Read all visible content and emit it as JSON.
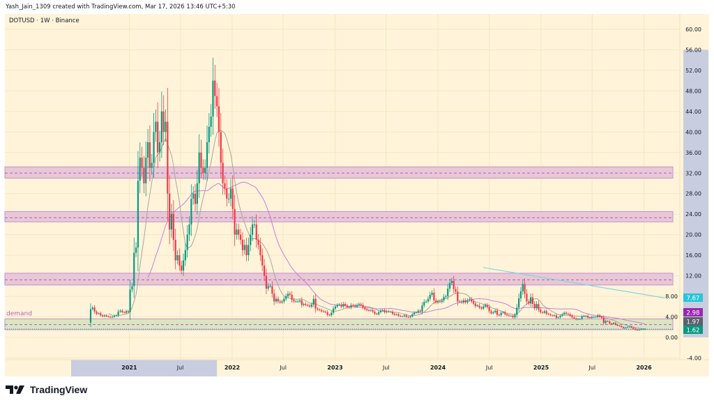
{
  "header": {
    "credit": "Yash_Jain_1309 created with TradingView.com, Mar 17, 2026 13:46 UTC+5:30",
    "symbol": "DOTUSD · 1W · Binance"
  },
  "branding": {
    "name": "TradingView"
  },
  "colors": {
    "background": "#fff4d9",
    "up": "#089981",
    "down": "#f23645",
    "zone_fill": "#e8c8d4",
    "zone_border": "#c58fcf",
    "demand_fill": "#dbe6c0",
    "dashed_line": "#b05ccf",
    "trendline": "#7fd6e0",
    "ma_fast": "#a8a59e",
    "ma_slow": "#cf7ad6",
    "axis_highlight": "#c9cde0"
  },
  "chart_data": {
    "type": "candlestick",
    "title": "DOTUSD · 1W · Binance",
    "interval": "weekly",
    "first_week": "2020-08-17",
    "ylim": [
      -6,
      62
    ],
    "grid": true,
    "y_ticks": [
      "60.00",
      "56.00",
      "52.00",
      "48.00",
      "44.00",
      "40.00",
      "36.00",
      "32.00",
      "28.00",
      "24.00",
      "20.00",
      "16.00",
      "12.00",
      "8.00",
      "4.00",
      "0.00",
      "-4.00"
    ],
    "y_tick_values": [
      60,
      56,
      52,
      48,
      44,
      40,
      36,
      32,
      28,
      24,
      20,
      16,
      12,
      8,
      4,
      0,
      -4
    ],
    "x_ticks": [
      {
        "label": "2021",
        "date": "2021-01-01"
      },
      {
        "label": "Jul",
        "date": "2021-07-01"
      },
      {
        "label": "2022",
        "date": "2022-01-01"
      },
      {
        "label": "Jul",
        "date": "2022-07-01"
      },
      {
        "label": "2023",
        "date": "2023-01-01"
      },
      {
        "label": "Jul",
        "date": "2023-07-01"
      },
      {
        "label": "2024",
        "date": "2024-01-01"
      },
      {
        "label": "Jul",
        "date": "2024-07-01"
      },
      {
        "label": "2025",
        "date": "2025-01-01"
      },
      {
        "label": "Jul",
        "date": "2025-07-01"
      },
      {
        "label": "2026",
        "date": "2026-01-01"
      }
    ],
    "first_open": 2.9,
    "closes": [
      5.5,
      5.8,
      5.0,
      4.6,
      4.7,
      4.3,
      4.1,
      4.3,
      4.1,
      4.0,
      3.9,
      4.0,
      4.2,
      4.3,
      5.0,
      5.2,
      4.9,
      4.8,
      5.1,
      4.9,
      9.3,
      10.0,
      16.5,
      17.5,
      30.5,
      35,
      33,
      30,
      35,
      38,
      33,
      34,
      40,
      42,
      36,
      38,
      44,
      40,
      42,
      28,
      21,
      24,
      19,
      15,
      16,
      14,
      13,
      15,
      17,
      20,
      22,
      27,
      28,
      26,
      30,
      36,
      33,
      32,
      33,
      38,
      41,
      43,
      50,
      47,
      45,
      40,
      34,
      30,
      29,
      27,
      27,
      29,
      25,
      20,
      21,
      20,
      19,
      17,
      18,
      16,
      18,
      20,
      22,
      22,
      19,
      18,
      16,
      14,
      12,
      9.5,
      10,
      10,
      8.5,
      7,
      7.5,
      7,
      6.8,
      7,
      7.5,
      8,
      8.5,
      8.3,
      7.3,
      7,
      7,
      7,
      7.2,
      6.3,
      6.5,
      6.3,
      6.2,
      6,
      6.4,
      7.5,
      5.6,
      5.4,
      5.3,
      5.1,
      5,
      4.9,
      4.4,
      4.3,
      4.8,
      5.6,
      6.0,
      6.3,
      6.4,
      6.0,
      6.5,
      6.2,
      5.9,
      5.8,
      6.3,
      6.2,
      6.0,
      6.3,
      6.5,
      6.3,
      5.8,
      5.5,
      5.3,
      5.2,
      5.3,
      5.0,
      4.6,
      4.5,
      4.9,
      5.2,
      5.3,
      4.9,
      5.1,
      5.0,
      5.0,
      4.6,
      4.4,
      4.5,
      4.2,
      4.1,
      4.1,
      4.3,
      4.0,
      3.9,
      4.1,
      4.5,
      4.8,
      4.9,
      5.2,
      5.0,
      6.2,
      6.9,
      7.0,
      7.5,
      8.3,
      8.7,
      7.2,
      6.8,
      7.0,
      6.9,
      7.2,
      7.9,
      8.0,
      9.5,
      10.6,
      11.0,
      9.4,
      8.9,
      7.0,
      7.0,
      6.8,
      7.2,
      6.8,
      7.2,
      7.4,
      7.0,
      6.6,
      6.1,
      6.2,
      5.8,
      5.6,
      6.0,
      6.3,
      5.9,
      5.1,
      4.7,
      4.9,
      5.2,
      4.4,
      4.3,
      4.8,
      4.9,
      4.5,
      4.3,
      4.2,
      4.2,
      3.9,
      4.4,
      5.8,
      7.6,
      9.0,
      10.4,
      8.5,
      7.0,
      6.6,
      7.8,
      6.5,
      5.7,
      6.5,
      5.4,
      4.9,
      4.8,
      5.1,
      4.6,
      4.5,
      4.3,
      4.2,
      4.3,
      3.8,
      3.9,
      4.2,
      4.5,
      4.8,
      4.6,
      4.5,
      4.2,
      3.9,
      3.7,
      3.5,
      3.6,
      3.6,
      4.1,
      4.2,
      4.2,
      3.9,
      3.8,
      4.0,
      4.0,
      4.0,
      4.3,
      4.0,
      3.8,
      2.8,
      3.2,
      3.1,
      2.7,
      2.6,
      2.8,
      2.5,
      2.3,
      2.2,
      2.0,
      1.8,
      1.9,
      2.0,
      2.1,
      1.9,
      1.7,
      1.5,
      1.4,
      1.5,
      1.6,
      1.6,
      1.62
    ],
    "zones": [
      {
        "low": 31.0,
        "high": 33.2,
        "mid": 32.0
      },
      {
        "low": 22.5,
        "high": 24.5,
        "mid": 23.3
      },
      {
        "low": 10.2,
        "high": 12.5,
        "mid": 11.2
      }
    ],
    "demand_zone": {
      "label": "demand",
      "low": 1.5,
      "high": 3.6,
      "mid": 2.5
    },
    "trendline": {
      "start": {
        "date": "2024-06-10",
        "price": 13.6
      },
      "end": {
        "date": "2026-03-16",
        "price": 7.67
      }
    },
    "price_labels": [
      {
        "value": "7.67",
        "color": "#26c6da",
        "price": 7.67
      },
      {
        "value": "2.98",
        "color": "#9c27b0",
        "price": 2.98
      },
      {
        "value": "1.97",
        "color": "#5d606b",
        "price": 1.97
      },
      {
        "value": "1.62",
        "color": "#089981",
        "price": 1.62
      }
    ],
    "last_price": 1.62,
    "highlight_price_range": [
      1.62,
      56.0
    ],
    "highlight_date_range": [
      "2020-08-17",
      "2021-11-08"
    ]
  }
}
